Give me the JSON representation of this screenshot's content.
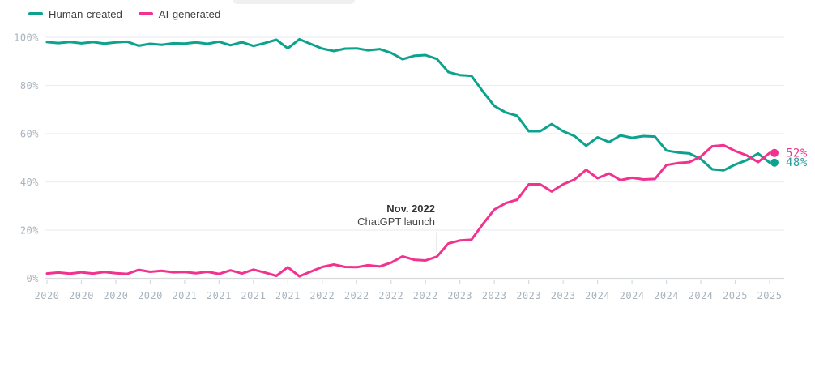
{
  "legend_note": "legend labels mirror chart_data.series names",
  "annotation_note": "annotation text lives in chart_data.annotation",
  "chart_data": {
    "type": "line",
    "title": "",
    "xlabel": "",
    "ylabel": "",
    "ylim": [
      0,
      100
    ],
    "grid": "horizontal",
    "legend_position": "top-left",
    "x_unit": "month",
    "x": [
      "2020-01",
      "2020-02",
      "2020-03",
      "2020-04",
      "2020-05",
      "2020-06",
      "2020-07",
      "2020-08",
      "2020-09",
      "2020-10",
      "2020-11",
      "2020-12",
      "2021-01",
      "2021-02",
      "2021-03",
      "2021-04",
      "2021-05",
      "2021-06",
      "2021-07",
      "2021-08",
      "2021-09",
      "2021-10",
      "2021-11",
      "2021-12",
      "2022-01",
      "2022-02",
      "2022-03",
      "2022-04",
      "2022-05",
      "2022-06",
      "2022-07",
      "2022-08",
      "2022-09",
      "2022-10",
      "2022-11",
      "2022-12",
      "2023-01",
      "2023-02",
      "2023-03",
      "2023-04",
      "2023-05",
      "2023-06",
      "2023-07",
      "2023-08",
      "2023-09",
      "2023-10",
      "2023-11",
      "2023-12",
      "2024-01",
      "2024-02",
      "2024-03",
      "2024-04",
      "2024-05",
      "2024-06",
      "2024-07",
      "2024-08",
      "2024-09",
      "2024-10",
      "2024-11",
      "2024-12",
      "2025-01",
      "2025-02",
      "2025-03",
      "2025-04"
    ],
    "x_tick_labels": [
      "2020",
      "2020",
      "2020",
      "2020",
      "2021",
      "2021",
      "2021",
      "2021",
      "2022",
      "2022",
      "2022",
      "2022",
      "2023",
      "2023",
      "2023",
      "2023",
      "2024",
      "2024",
      "2024",
      "2024",
      "2025",
      "2025"
    ],
    "y_ticks": [
      {
        "value": 100,
        "label": "100%"
      },
      {
        "value": 80,
        "label": "80%"
      },
      {
        "value": 60,
        "label": "60%"
      },
      {
        "value": 40,
        "label": "40%"
      },
      {
        "value": 20,
        "label": "20%"
      },
      {
        "value": 0,
        "label": "0%"
      }
    ],
    "series": [
      {
        "name": "Human-created",
        "color": "#0da28e",
        "end_label": "48%",
        "end_label_color": "#2b9e9e",
        "values": [
          98.0,
          97.6,
          98.1,
          97.5,
          98.0,
          97.4,
          97.9,
          98.2,
          96.5,
          97.3,
          96.9,
          97.5,
          97.4,
          97.9,
          97.3,
          98.2,
          96.7,
          98.0,
          96.4,
          97.6,
          99.0,
          95.4,
          99.2,
          97.2,
          95.3,
          94.3,
          95.3,
          95.4,
          94.6,
          95.1,
          93.5,
          90.9,
          92.3,
          92.6,
          91.0,
          85.5,
          84.3,
          84.0,
          77.5,
          71.5,
          68.8,
          67.4,
          61.0,
          61.0,
          64.0,
          61.0,
          59.0,
          55.0,
          58.5,
          56.5,
          59.3,
          58.3,
          59.0,
          58.8,
          53.0,
          52.2,
          51.8,
          49.5,
          45.2,
          44.8,
          47.2,
          49.0,
          51.8,
          48.0
        ]
      },
      {
        "name": "AI-generated",
        "color": "#f1338f",
        "end_label": "52%",
        "end_label_color": "#f1338f",
        "values": [
          2.0,
          2.4,
          1.9,
          2.5,
          2.0,
          2.6,
          2.1,
          1.8,
          3.5,
          2.7,
          3.1,
          2.5,
          2.6,
          2.1,
          2.7,
          1.8,
          3.3,
          2.0,
          3.6,
          2.4,
          1.0,
          4.6,
          0.8,
          2.8,
          4.7,
          5.7,
          4.7,
          4.6,
          5.4,
          4.9,
          6.5,
          9.1,
          7.7,
          7.4,
          9.0,
          14.5,
          15.7,
          16.0,
          22.5,
          28.5,
          31.2,
          32.6,
          39.0,
          39.0,
          36.0,
          39.0,
          41.0,
          45.0,
          41.5,
          43.5,
          40.7,
          41.7,
          41.0,
          41.2,
          47.0,
          47.8,
          48.2,
          50.5,
          54.8,
          55.2,
          52.8,
          51.0,
          48.2,
          52.0
        ]
      }
    ],
    "annotation": {
      "line1": "Nov. 2022",
      "line2": "ChatGPT launch",
      "x_index": 34
    }
  }
}
